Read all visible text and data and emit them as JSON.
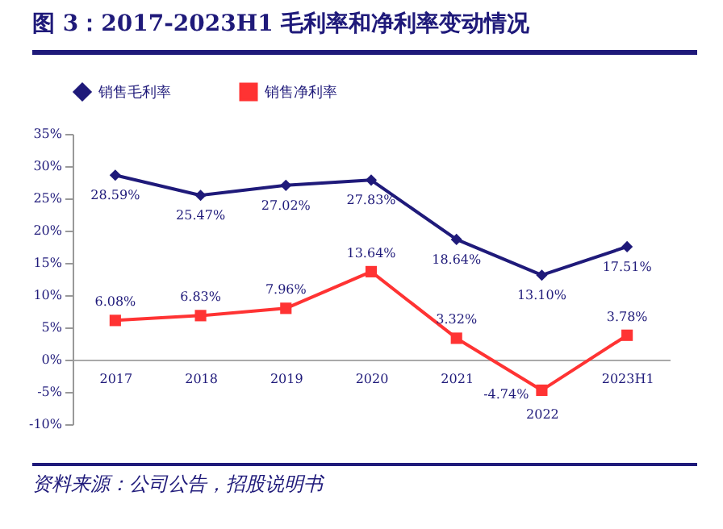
{
  "chart_data": {
    "type": "line",
    "title": "图 3：2017-2023H1 毛利率和净利率变动情况",
    "categories": [
      "2017",
      "2018",
      "2019",
      "2020",
      "2021",
      "2022",
      "2023H1"
    ],
    "series": [
      {
        "name": "销售毛利率",
        "color": "#1f1a7a",
        "marker": "diamond",
        "values": [
          28.59,
          25.47,
          27.02,
          27.83,
          18.64,
          13.1,
          17.51
        ],
        "value_labels": [
          "28.59%",
          "25.47%",
          "27.02%",
          "27.83%",
          "18.64%",
          "13.10%",
          "17.51%"
        ]
      },
      {
        "name": "销售净利率",
        "color": "#ff3333",
        "marker": "square",
        "values": [
          6.08,
          6.83,
          7.96,
          13.64,
          3.32,
          -4.74,
          3.78
        ],
        "value_labels": [
          "6.08%",
          "6.83%",
          "7.96%",
          "13.64%",
          "3.32%",
          "-4.74%",
          "3.78%"
        ]
      }
    ],
    "ylim": [
      -10,
      35
    ],
    "yticks": [
      {
        "value": -10,
        "label": "-10%"
      },
      {
        "value": -5,
        "label": "-5%"
      },
      {
        "value": 0,
        "label": "0%"
      },
      {
        "value": 5,
        "label": "5%"
      },
      {
        "value": 10,
        "label": "10%"
      },
      {
        "value": 15,
        "label": "15%"
      },
      {
        "value": 20,
        "label": "20%"
      },
      {
        "value": 25,
        "label": "25%"
      },
      {
        "value": 30,
        "label": "30%"
      },
      {
        "value": 35,
        "label": "35%"
      }
    ],
    "grid": false,
    "legend": "top",
    "annotations": [
      "资料来源：公司公告，招股说明书"
    ]
  }
}
